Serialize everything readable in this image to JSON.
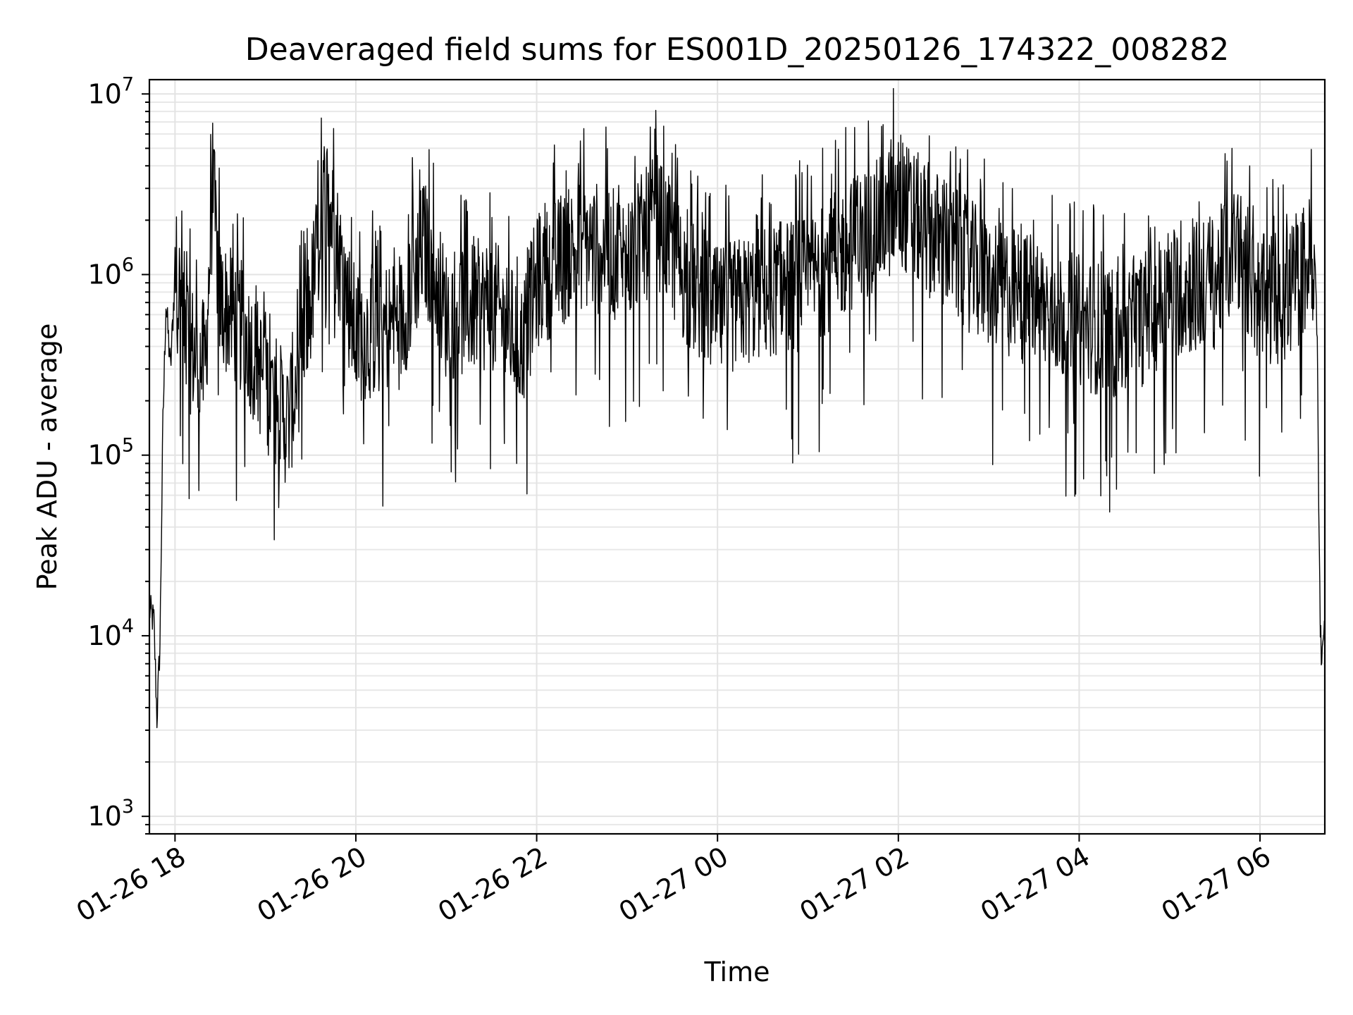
{
  "chart_data": {
    "type": "line",
    "title": "Deaveraged field sums for ES001D_20250126_174322_008282",
    "xlabel": "Time",
    "ylabel": "Peak ADU - average",
    "x_range": [
      "2025-01-26 17:43",
      "2025-01-27 06:43"
    ],
    "y_scale": "log",
    "ylim": [
      800,
      12000000
    ],
    "x_ticks": [
      {
        "t": "2025-01-26 18:00",
        "label": "01-26 18"
      },
      {
        "t": "2025-01-26 20:00",
        "label": "01-26 20"
      },
      {
        "t": "2025-01-26 22:00",
        "label": "01-26 22"
      },
      {
        "t": "2025-01-27 00:00",
        "label": "01-27 00"
      },
      {
        "t": "2025-01-27 02:00",
        "label": "01-27 02"
      },
      {
        "t": "2025-01-27 04:00",
        "label": "01-27 04"
      },
      {
        "t": "2025-01-27 06:00",
        "label": "01-27 06"
      }
    ],
    "y_ticks": [
      {
        "value": 1000,
        "base": "10",
        "exp": "3"
      },
      {
        "value": 10000,
        "base": "10",
        "exp": "4"
      },
      {
        "value": 100000,
        "base": "10",
        "exp": "5"
      },
      {
        "value": 1000000,
        "base": "10",
        "exp": "6"
      },
      {
        "value": 10000000,
        "base": "10",
        "exp": "7"
      }
    ],
    "grid": true,
    "series": [
      {
        "line_color": "#000000",
        "points": [
          [
            "2025-01-26 17:43",
            14000
          ],
          [
            "2025-01-26 17:46",
            12000
          ],
          [
            "2025-01-26 17:48",
            3500
          ],
          [
            "2025-01-26 17:50",
            9000
          ],
          [
            "2025-01-26 17:52",
            150000
          ],
          [
            "2025-01-26 17:54",
            700000
          ],
          [
            "2025-01-26 17:57",
            300000
          ],
          [
            "2025-01-26 18:00",
            1000000
          ],
          [
            "2025-01-26 18:10",
            400000
          ],
          [
            "2025-01-26 18:20",
            300000
          ],
          [
            "2025-01-26 18:25",
            3000000
          ],
          [
            "2025-01-26 18:30",
            700000
          ],
          [
            "2025-01-26 18:45",
            500000
          ],
          [
            "2025-01-26 19:00",
            250000
          ],
          [
            "2025-01-26 19:15",
            150000
          ],
          [
            "2025-01-26 19:30",
            700000
          ],
          [
            "2025-01-26 19:40",
            3000000
          ],
          [
            "2025-01-26 20:00",
            450000
          ],
          [
            "2025-01-26 20:30",
            550000
          ],
          [
            "2025-01-26 20:45",
            1500000
          ],
          [
            "2025-01-26 21:00",
            600000
          ],
          [
            "2025-01-26 21:30",
            700000
          ],
          [
            "2025-01-26 21:50",
            400000
          ],
          [
            "2025-01-26 22:00",
            900000
          ],
          [
            "2025-01-26 22:30",
            1500000
          ],
          [
            "2025-01-26 23:00",
            1200000
          ],
          [
            "2025-01-26 23:20",
            2000000
          ],
          [
            "2025-01-26 23:40",
            900000
          ],
          [
            "2025-01-27 00:00",
            600000
          ],
          [
            "2025-01-27 00:30",
            800000
          ],
          [
            "2025-01-27 01:00",
            900000
          ],
          [
            "2025-01-27 01:30",
            1500000
          ],
          [
            "2025-01-27 01:45",
            1800000
          ],
          [
            "2025-01-27 02:00",
            2500000
          ],
          [
            "2025-01-27 02:30",
            1500000
          ],
          [
            "2025-01-27 03:00",
            900000
          ],
          [
            "2025-01-27 03:30",
            700000
          ],
          [
            "2025-01-27 04:00",
            550000
          ],
          [
            "2025-01-27 04:30",
            450000
          ],
          [
            "2025-01-27 05:00",
            800000
          ],
          [
            "2025-01-27 05:30",
            900000
          ],
          [
            "2025-01-27 05:45",
            1500000
          ],
          [
            "2025-01-27 06:00",
            700000
          ],
          [
            "2025-01-27 06:20",
            800000
          ],
          [
            "2025-01-27 06:36",
            1300000
          ],
          [
            "2025-01-27 06:38",
            500000
          ],
          [
            "2025-01-27 06:39",
            60000
          ],
          [
            "2025-01-27 06:40",
            10000
          ],
          [
            "2025-01-27 06:41",
            8000
          ],
          [
            "2025-01-27 06:43",
            11000
          ]
        ]
      }
    ]
  }
}
